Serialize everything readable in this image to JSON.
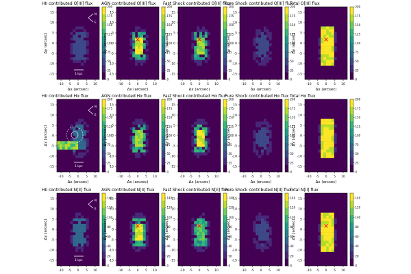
{
  "figure": {
    "type": "heatmap",
    "cmap_colors": [
      "#440154",
      "#482878",
      "#3e4989",
      "#31688e",
      "#26828e",
      "#1f9e89",
      "#35b779",
      "#6ece58",
      "#b5de2b",
      "#fde725"
    ],
    "marker_color": "#e8101a",
    "scalebar_label": "1 kpc",
    "compass": [
      "E",
      "N"
    ]
  },
  "chart_data": [
    {
      "type": "heatmap",
      "row": "OIII",
      "titles": [
        "HII contributed O[III] flux",
        "AGN contributed O[III] flux",
        "Fast Shock contributed O[III] flux",
        "Pure Shock contributed O[III] flux",
        "Total O[III] flux"
      ],
      "xlabel": "Δx (arcsec)",
      "ylabel": "Δy (arcsec)",
      "x_ticks": [
        "-10",
        "-5",
        "0",
        "5",
        "10"
      ],
      "y_ticks": [
        "15",
        "10",
        "5",
        "0",
        "-5",
        "-10",
        "-15"
      ],
      "colorbar_ticks": [
        "200",
        "175",
        "150",
        "125",
        "100",
        "75",
        "50",
        "25",
        "0"
      ],
      "colorbar_range": [
        0,
        200
      ]
    },
    {
      "type": "heatmap",
      "row": "Halpha",
      "titles": [
        "HII contributed Hα flux",
        "AGN contributed Hα flux",
        "Fast Shock contributed Hα flux",
        "Pure Shock contributed Hα flux",
        "Total Hα flux"
      ],
      "xlabel": "Δx (arcsec)",
      "ylabel": "Δy (arcsec)",
      "x_ticks": [
        "-10",
        "-5",
        "0",
        "5",
        "10"
      ],
      "y_ticks": [
        "15",
        "10",
        "5",
        "0",
        "-5",
        "-10",
        "-15"
      ],
      "colorbar_ticks": [
        "200",
        "175",
        "150",
        "125",
        "100",
        "75",
        "50",
        "25",
        "0"
      ],
      "colorbar_range": [
        0,
        200
      ]
    },
    {
      "type": "heatmap",
      "row": "NII",
      "titles": [
        "HII contributed N[II] flux",
        "AGN contributed N[II] flux",
        "Fast Shock contributed N[II] flux",
        "Pure Shock contributed N[II] flux",
        "Total N[II] flux"
      ],
      "xlabel": "Δx (arcsec)",
      "ylabel": "Δy (arcsec)",
      "x_ticks": [
        "-10",
        "-5",
        "0",
        "5",
        "10"
      ],
      "y_ticks": [
        "15",
        "10",
        "5",
        "0",
        "-5",
        "-10",
        "-15"
      ],
      "colorbar_ticks": [
        "140",
        "120",
        "100",
        "80",
        "60",
        "40",
        "20",
        "0"
      ],
      "colorbar_range": [
        0,
        150
      ]
    }
  ]
}
